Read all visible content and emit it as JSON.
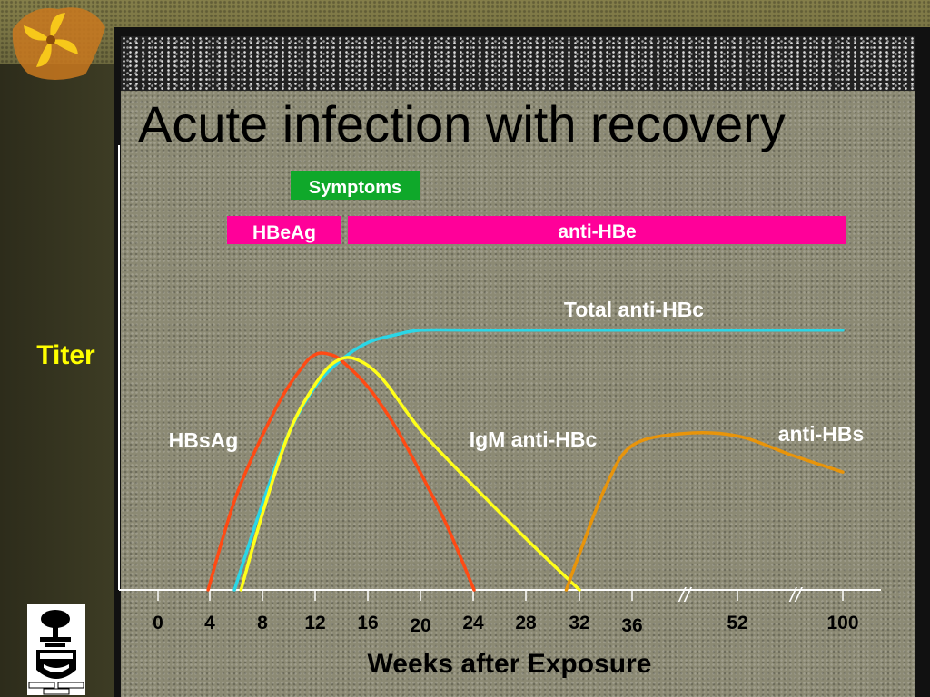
{
  "slide": {
    "title": "Acute infection with recovery"
  },
  "chart_data": {
    "type": "line",
    "title": "Acute infection with recovery",
    "ylabel": "Titer",
    "xlabel": "Weeks after Exposure",
    "x_ticks": [
      "0",
      "4",
      "8",
      "12",
      "16",
      "20",
      "24",
      "28",
      "32",
      "36",
      "52",
      "100"
    ],
    "axis_breaks": [
      "//",
      "//"
    ],
    "grid": false,
    "bars": [
      {
        "label": "Symptoms",
        "start_week": 12.5,
        "end_week": 19.5,
        "color": "#0fa82a"
      },
      {
        "label": "HBeAg",
        "start_week": 5.3,
        "end_week": 13.9,
        "color": "#ff0099"
      },
      {
        "label": "anti-HBe",
        "start_week": 14.4,
        "end_week": "100",
        "color": "#ff0099"
      }
    ],
    "series": [
      {
        "name": "HBsAg",
        "color": "#ff4a14",
        "x": [
          3.8,
          6,
          9,
          11,
          12,
          13,
          14,
          16,
          18,
          20,
          22,
          24
        ],
        "y": [
          0,
          0.4,
          0.76,
          0.93,
          0.98,
          0.98,
          0.95,
          0.84,
          0.68,
          0.48,
          0.26,
          0
        ]
      },
      {
        "name": "IgM anti-HBc",
        "color": "#ffff1a",
        "x": [
          6.3,
          8,
          10,
          12,
          13.5,
          15,
          17,
          20,
          24,
          28,
          32
        ],
        "y": [
          0,
          0.33,
          0.66,
          0.86,
          0.95,
          0.96,
          0.88,
          0.66,
          0.43,
          0.21,
          0
        ]
      },
      {
        "name": "Total anti-HBc",
        "color": "#2ad6e6",
        "x": [
          5.8,
          8,
          10,
          12,
          14,
          16,
          18,
          20,
          24,
          28,
          32,
          36,
          "100"
        ],
        "y": [
          0,
          0.37,
          0.66,
          0.85,
          0.96,
          1.03,
          1.06,
          1.08,
          1.08,
          1.08,
          1.08,
          1.08,
          1.08
        ]
      },
      {
        "name": "anti-HBs",
        "color": "#e8940a",
        "x": [
          31,
          32,
          34,
          36,
          "44",
          "52",
          "76",
          "100"
        ],
        "y": [
          0,
          0.15,
          0.43,
          0.6,
          0.65,
          0.64,
          0.56,
          0.49
        ]
      }
    ],
    "legend": "inline labels"
  },
  "colors": {
    "panel": "#8c8a74",
    "axis": "#ffffff",
    "tick_text": "#000000",
    "titer": "#ffff00"
  }
}
